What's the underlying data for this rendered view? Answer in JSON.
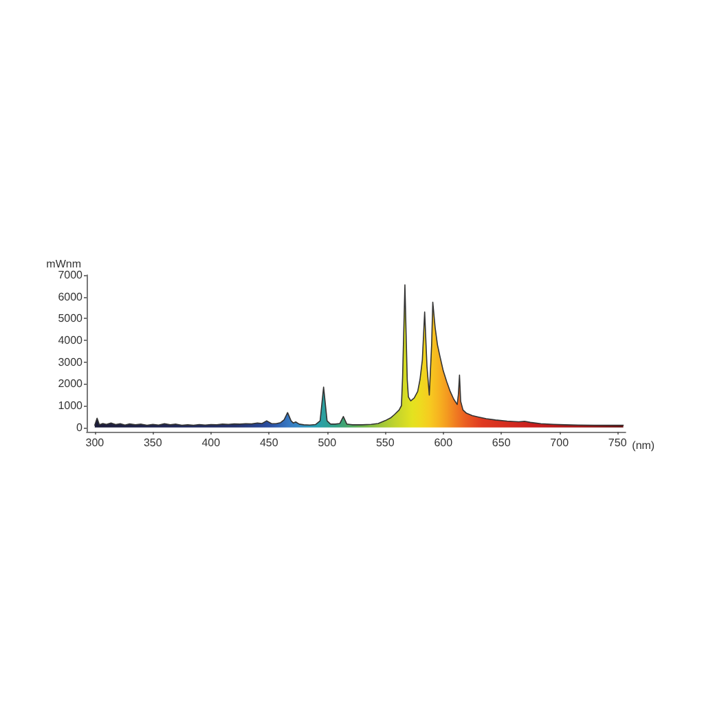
{
  "chart_data": {
    "type": "area",
    "xlabel": "(nm)",
    "ylabel": "mWnm",
    "x": [
      300,
      302,
      304,
      307,
      310,
      314,
      318,
      322,
      326,
      330,
      335,
      340,
      345,
      350,
      355,
      360,
      365,
      370,
      375,
      380,
      385,
      390,
      395,
      400,
      405,
      410,
      415,
      420,
      425,
      430,
      435,
      440,
      444,
      448,
      452,
      456,
      460,
      463,
      466,
      469,
      471,
      473,
      476,
      480,
      485,
      490,
      494,
      497,
      500,
      503,
      507,
      511,
      514,
      517,
      522,
      530,
      538,
      544,
      550,
      555,
      558,
      562,
      564,
      565,
      567,
      569,
      570,
      572,
      575,
      578,
      580,
      582,
      583,
      584,
      586,
      588,
      590,
      591,
      593,
      595,
      597,
      600,
      603,
      606,
      609,
      612,
      613,
      614,
      615,
      617,
      620,
      625,
      630,
      637,
      645,
      655,
      665,
      670,
      675,
      684,
      695,
      705,
      716,
      730,
      745,
      755
    ],
    "values": [
      100,
      420,
      120,
      180,
      140,
      200,
      130,
      170,
      110,
      160,
      120,
      150,
      100,
      140,
      110,
      170,
      120,
      150,
      100,
      120,
      100,
      130,
      110,
      130,
      120,
      150,
      140,
      160,
      150,
      170,
      160,
      200,
      180,
      300,
      180,
      170,
      220,
      350,
      680,
      300,
      200,
      250,
      150,
      120,
      110,
      130,
      300,
      1850,
      300,
      150,
      150,
      180,
      500,
      150,
      120,
      120,
      140,
      180,
      310,
      450,
      590,
      800,
      1000,
      2300,
      6550,
      2200,
      1400,
      1220,
      1350,
      1650,
      2200,
      3100,
      4200,
      5300,
      2800,
      1480,
      3800,
      5750,
      4600,
      3800,
      3300,
      2600,
      2100,
      1650,
      1300,
      1050,
      1500,
      2400,
      1200,
      800,
      650,
      540,
      480,
      400,
      340,
      290,
      260,
      280,
      230,
      170,
      140,
      120,
      110,
      100,
      100,
      100
    ],
    "color": "#333333",
    "xlim": [
      293,
      757
    ],
    "ylim": [
      -200,
      7000
    ],
    "xticks": [
      300,
      350,
      400,
      450,
      500,
      550,
      600,
      650,
      700,
      750
    ],
    "yticks": [
      0,
      1000,
      2000,
      3000,
      4000,
      5000,
      6000,
      7000
    ]
  }
}
